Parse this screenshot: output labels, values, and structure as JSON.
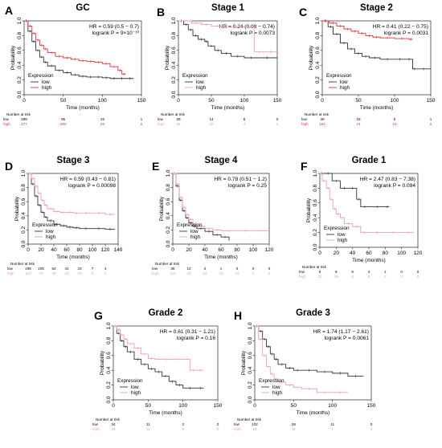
{
  "colors": {
    "low": "#333333",
    "high": "#e0303a",
    "high_light": "#e8a0a8"
  },
  "legend": {
    "title": "Expression",
    "low": "low",
    "high": "high"
  },
  "risk": {
    "header": "Number at risk",
    "low": "low",
    "high": "high"
  },
  "common": {
    "ylabel": "Probability",
    "xlabel": "Time (months)"
  },
  "panels": [
    {
      "letter": "A",
      "title": "GC",
      "hr": "HR = 0.59 (0.5 − 0.7)",
      "logrank": "logrank P = 9×10⁻¹⁰",
      "high_color": "#e0303a"
    },
    {
      "letter": "B",
      "title": "Stage 1",
      "hr": "HR = 0.24 (0.08 − 0.74)",
      "logrank": "logrank P = 0.0073",
      "high_color": "#e8a0a8"
    },
    {
      "letter": "C",
      "title": "Stage 2",
      "hr": "HR = 0.41 (0.22 − 0.75)",
      "logrank": "logrank P = 0.0031",
      "high_color": "#e0303a"
    },
    {
      "letter": "D",
      "title": "Stage 3",
      "hr": "HR = 0.59 (0.43 − 0.81)",
      "logrank": "logrank P = 0.00098",
      "high_color": "#e8a0a8"
    },
    {
      "letter": "E",
      "title": "Stage 4",
      "hr": "HR = 0.78 (0.51 − 1.2)",
      "logrank": "logrank P = 0.25",
      "high_color": "#e8a0a8"
    },
    {
      "letter": "F",
      "title": "Grade 1",
      "hr": "HR = 2.47 (0.83 − 7.38)",
      "logrank": "logrank P = 0.094",
      "high_color": "#e8a0a8"
    },
    {
      "letter": "G",
      "title": "Grade 2",
      "hr": "HR = 0.61 (0.31 − 1.21)",
      "logrank": "logrank P = 0.16",
      "high_color": "#e8a0a8"
    },
    {
      "letter": "H",
      "title": "Grade 3",
      "hr": "HR = 1.74 (1.17 − 2.61)",
      "logrank": "logrank P = 0.0061",
      "high_color": "#e8a0a8"
    }
  ],
  "chart_data": [
    {
      "type": "line",
      "title": "GC",
      "xlabel": "Time (months)",
      "ylabel": "Probability",
      "xlim": [
        0,
        150
      ],
      "ylim": [
        0,
        1
      ],
      "xticks": [
        0,
        50,
        100,
        150
      ],
      "yticks": [
        0,
        0.2,
        0.4,
        0.6,
        0.8,
        1.0
      ],
      "series": [
        {
          "name": "low",
          "x": [
            0,
            5,
            10,
            15,
            20,
            25,
            30,
            40,
            50,
            60,
            70,
            80,
            90,
            100,
            110,
            120,
            130,
            140
          ],
          "y": [
            1,
            0.86,
            0.72,
            0.6,
            0.51,
            0.44,
            0.39,
            0.33,
            0.3,
            0.27,
            0.25,
            0.24,
            0.24,
            0.23,
            0.22,
            0.22,
            0.22,
            0.22
          ]
        },
        {
          "name": "high",
          "x": [
            0,
            5,
            10,
            15,
            20,
            25,
            30,
            40,
            50,
            60,
            70,
            80,
            90,
            100,
            110,
            120,
            125,
            130
          ],
          "y": [
            1,
            0.93,
            0.83,
            0.74,
            0.67,
            0.62,
            0.57,
            0.52,
            0.5,
            0.48,
            0.46,
            0.45,
            0.44,
            0.42,
            0.38,
            0.33,
            0.28,
            0.28
          ]
        }
      ],
      "at_risk": {
        "times": [
          0,
          50,
          100,
          150
        ],
        "low": [
          "398",
          "95",
          "19",
          "1"
        ],
        "high": [
          "477",
          "200",
          "29",
          "0"
        ]
      }
    },
    {
      "type": "line",
      "title": "Stage 1",
      "xlabel": "Time (months)",
      "ylabel": "Probability",
      "xlim": [
        0,
        150
      ],
      "ylim": [
        0,
        1
      ],
      "xticks": [
        0,
        50,
        100,
        150
      ],
      "yticks": [
        0,
        0.2,
        0.4,
        0.6,
        0.8,
        1.0
      ],
      "series": [
        {
          "name": "low",
          "x": [
            0,
            8,
            15,
            22,
            30,
            40,
            45,
            55,
            65,
            80,
            100,
            120,
            150
          ],
          "y": [
            1,
            0.95,
            0.88,
            0.8,
            0.75,
            0.72,
            0.66,
            0.6,
            0.56,
            0.52,
            0.5,
            0.5,
            0.5
          ]
        },
        {
          "name": "high",
          "x": [
            0,
            20,
            35,
            50,
            70,
            90,
            110,
            115,
            130,
            150
          ],
          "y": [
            1,
            0.97,
            0.95,
            0.93,
            0.92,
            0.92,
            0.92,
            0.58,
            0.58,
            0.58
          ]
        }
      ],
      "at_risk": {
        "times": [
          0,
          50,
          100,
          150
        ],
        "low": [
          "29",
          "14",
          "6",
          "0"
        ],
        "high": [
          "36",
          "32",
          "4",
          "0"
        ]
      }
    },
    {
      "type": "line",
      "title": "Stage 2",
      "xlabel": "Time (months)",
      "ylabel": "Probability",
      "xlim": [
        0,
        150
      ],
      "ylim": [
        0,
        1
      ],
      "xticks": [
        0,
        50,
        100,
        150
      ],
      "yticks": [
        0,
        0.2,
        0.4,
        0.6,
        0.8,
        1.0
      ],
      "series": [
        {
          "name": "low",
          "x": [
            0,
            8,
            15,
            25,
            35,
            45,
            55,
            65,
            80,
            100,
            115,
            125,
            130,
            150
          ],
          "y": [
            1,
            0.92,
            0.82,
            0.7,
            0.62,
            0.56,
            0.52,
            0.5,
            0.48,
            0.48,
            0.48,
            0.35,
            0.35,
            0.35
          ]
        },
        {
          "name": "high",
          "x": [
            0,
            10,
            20,
            30,
            40,
            50,
            60,
            70,
            80,
            100,
            120,
            125
          ],
          "y": [
            1,
            0.97,
            0.93,
            0.89,
            0.86,
            0.83,
            0.8,
            0.78,
            0.77,
            0.76,
            0.75,
            0.75
          ]
        }
      ],
      "at_risk": {
        "times": [
          0,
          50,
          100,
          150
        ],
        "low": [
          "39",
          "18",
          "5",
          "1"
        ],
        "high": [
          "101",
          "74",
          "15",
          "0"
        ]
      }
    },
    {
      "type": "line",
      "title": "Stage 3",
      "xlabel": "Time (months)",
      "ylabel": "Probability",
      "xlim": [
        0,
        140
      ],
      "ylim": [
        0,
        1
      ],
      "xticks": [
        0,
        20,
        40,
        60,
        80,
        100,
        120,
        140
      ],
      "yticks": [
        0,
        0.2,
        0.4,
        0.6,
        0.8,
        1.0
      ],
      "series": [
        {
          "name": "low",
          "x": [
            0,
            5,
            10,
            15,
            20,
            25,
            30,
            40,
            50,
            60,
            70,
            80,
            100,
            120,
            135
          ],
          "y": [
            1,
            0.85,
            0.68,
            0.55,
            0.45,
            0.38,
            0.33,
            0.28,
            0.26,
            0.24,
            0.23,
            0.22,
            0.22,
            0.21,
            0.21
          ]
        },
        {
          "name": "high",
          "x": [
            0,
            5,
            10,
            15,
            20,
            25,
            30,
            40,
            50,
            60,
            70,
            80,
            100,
            120,
            135
          ],
          "y": [
            1,
            0.93,
            0.82,
            0.72,
            0.62,
            0.55,
            0.5,
            0.46,
            0.45,
            0.45,
            0.44,
            0.44,
            0.44,
            0.42,
            0.42
          ]
        }
      ],
      "at_risk": {
        "times": [
          0,
          20,
          40,
          60,
          80,
          100,
          120,
          140
        ],
        "low": [
          "195",
          "105",
          "62",
          "41",
          "23",
          "7",
          "4",
          ""
        ],
        "high": [
          "110",
          "73",
          "48",
          "42",
          "20",
          "3",
          "1",
          ""
        ]
      }
    },
    {
      "type": "line",
      "title": "Stage 4",
      "xlabel": "Time (months)",
      "ylabel": "Probability",
      "xlim": [
        0,
        120
      ],
      "ylim": [
        0,
        1
      ],
      "xticks": [
        0,
        20,
        40,
        60,
        80,
        100,
        120
      ],
      "yticks": [
        0,
        0.2,
        0.4,
        0.6,
        0.8,
        1.0
      ],
      "series": [
        {
          "name": "low",
          "x": [
            0,
            4,
            8,
            12,
            16,
            20,
            25,
            30,
            40,
            50,
            60,
            70
          ],
          "y": [
            1,
            0.82,
            0.62,
            0.47,
            0.37,
            0.3,
            0.25,
            0.22,
            0.18,
            0.13,
            0.1,
            0.05
          ]
        },
        {
          "name": "high",
          "x": [
            0,
            4,
            8,
            12,
            16,
            20,
            25,
            30,
            40,
            50,
            60,
            80,
            100,
            120
          ],
          "y": [
            1,
            0.85,
            0.66,
            0.52,
            0.42,
            0.35,
            0.28,
            0.25,
            0.22,
            0.2,
            0.19,
            0.19,
            0.19,
            0.19
          ]
        }
      ],
      "at_risk": {
        "times": [
          0,
          20,
          40,
          60,
          80,
          100,
          120
        ],
        "low": [
          "36",
          "12",
          "2",
          "1",
          "0",
          "0",
          "0"
        ],
        "high": [
          "110",
          "43",
          "21",
          "15",
          "11",
          "1",
          "0"
        ]
      }
    },
    {
      "type": "line",
      "title": "Grade 1",
      "xlabel": "Time (months)",
      "ylabel": "Probability",
      "xlim": [
        0,
        120
      ],
      "ylim": [
        0,
        1
      ],
      "xticks": [
        0,
        20,
        40,
        60,
        80,
        100,
        120
      ],
      "yticks": [
        0,
        0.2,
        0.4,
        0.6,
        0.8,
        1.0
      ],
      "series": [
        {
          "name": "low",
          "x": [
            0,
            5,
            15,
            25,
            35,
            45,
            50,
            60,
            80,
            85
          ],
          "y": [
            1,
            1,
            0.9,
            0.8,
            0.8,
            0.65,
            0.55,
            0.55,
            0.55,
            0.55
          ]
        },
        {
          "name": "high",
          "x": [
            0,
            3,
            8,
            12,
            16,
            20,
            25,
            30,
            40,
            50,
            60,
            80,
            100,
            115
          ],
          "y": [
            1,
            0.9,
            0.8,
            0.65,
            0.52,
            0.45,
            0.4,
            0.32,
            0.28,
            0.2,
            0.2,
            0.2,
            0.2,
            0.2
          ]
        }
      ],
      "at_risk": {
        "times": [
          0,
          20,
          40,
          60,
          80,
          100,
          120
        ],
        "low": [
          "9",
          "8",
          "6",
          "4",
          "1",
          "0",
          "0"
        ],
        "high": [
          "23",
          "16",
          "8",
          "6",
          "3",
          "2",
          "0"
        ]
      }
    },
    {
      "type": "line",
      "title": "Grade 2",
      "xlabel": "Time (months)",
      "ylabel": "Probability",
      "xlim": [
        0,
        150
      ],
      "ylim": [
        0,
        1
      ],
      "xticks": [
        0,
        50,
        100,
        150
      ],
      "yticks": [
        0,
        0.2,
        0.4,
        0.6,
        0.8,
        1.0
      ],
      "series": [
        {
          "name": "low",
          "x": [
            0,
            5,
            10,
            15,
            20,
            30,
            40,
            50,
            60,
            70,
            80,
            90,
            100,
            120,
            130
          ],
          "y": [
            1,
            0.9,
            0.8,
            0.72,
            0.65,
            0.55,
            0.48,
            0.42,
            0.38,
            0.32,
            0.25,
            0.2,
            0.16,
            0.16,
            0.16
          ]
        },
        {
          "name": "high",
          "x": [
            0,
            5,
            10,
            15,
            20,
            30,
            40,
            50,
            60,
            70,
            80,
            100,
            110,
            120,
            130
          ],
          "y": [
            1,
            0.95,
            0.88,
            0.82,
            0.76,
            0.7,
            0.62,
            0.56,
            0.55,
            0.55,
            0.55,
            0.55,
            0.4,
            0.4,
            0.4
          ]
        }
      ],
      "at_risk": {
        "times": [
          0,
          50,
          100,
          150
        ],
        "low": [
          "34",
          "11",
          "2",
          "0"
        ],
        "high": [
          "33",
          "11",
          "5",
          "0"
        ]
      }
    },
    {
      "type": "line",
      "title": "Grade 3",
      "xlabel": "Time (months)",
      "ylabel": "Probability",
      "xlim": [
        0,
        150
      ],
      "ylim": [
        0,
        1
      ],
      "xticks": [
        0,
        50,
        100,
        150
      ],
      "yticks": [
        0,
        0.2,
        0.4,
        0.6,
        0.8,
        1.0
      ],
      "series": [
        {
          "name": "low",
          "x": [
            0,
            5,
            10,
            15,
            20,
            25,
            30,
            40,
            50,
            60,
            80,
            100,
            120,
            140
          ],
          "y": [
            1,
            0.93,
            0.82,
            0.72,
            0.62,
            0.55,
            0.48,
            0.43,
            0.4,
            0.4,
            0.38,
            0.36,
            0.32,
            0.32
          ]
        },
        {
          "name": "high",
          "x": [
            0,
            5,
            10,
            15,
            20,
            25,
            30,
            40,
            50,
            60,
            80,
            100,
            120
          ],
          "y": [
            1,
            0.82,
            0.6,
            0.45,
            0.35,
            0.28,
            0.24,
            0.2,
            0.17,
            0.15,
            0.1,
            0.1,
            0.1
          ]
        }
      ],
      "at_risk": {
        "times": [
          0,
          50,
          100,
          150
        ],
        "low": [
          "102",
          "26",
          "11",
          "0"
        ],
        "high": [
          "53",
          "11",
          "1",
          "0"
        ]
      }
    }
  ]
}
